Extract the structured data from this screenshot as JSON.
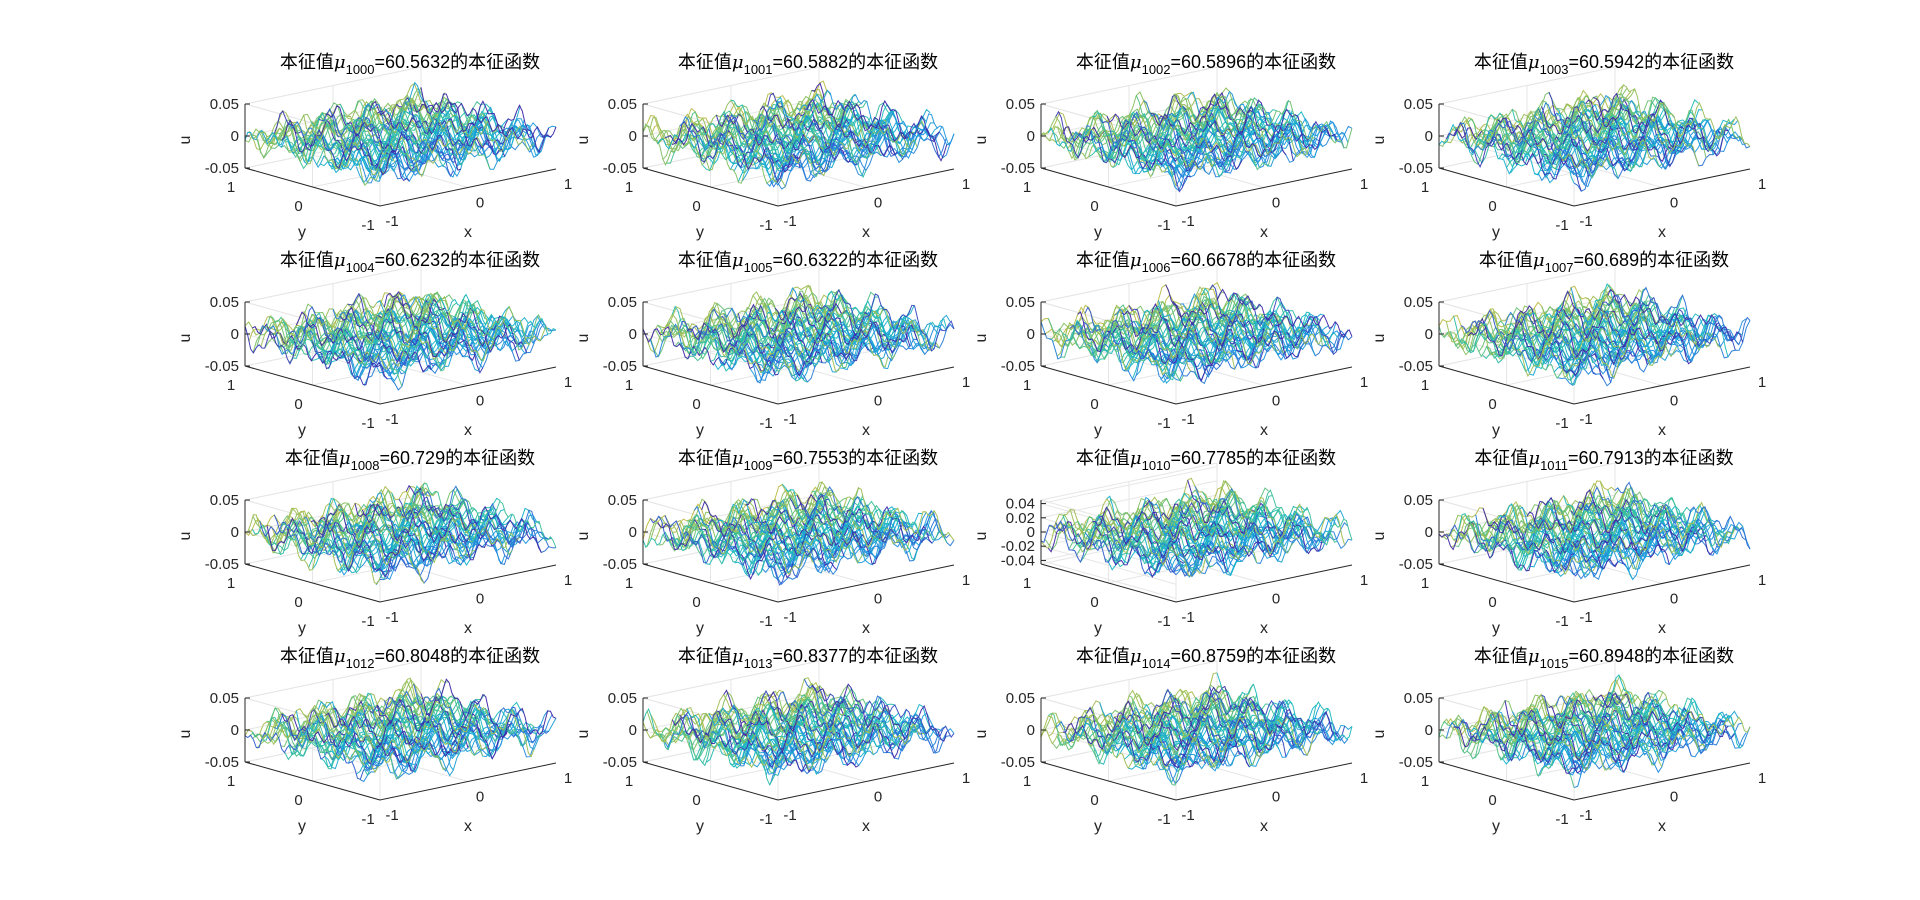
{
  "figure": {
    "background": "#ffffff",
    "axis_color": "#262626",
    "grid_color": "#e6e6e6",
    "colormap": [
      "#3e26a8",
      "#2f5fd0",
      "#1f93df",
      "#14b6c9",
      "#3cc095",
      "#8fbf5a",
      "#d3b93a",
      "#f6d828"
    ]
  },
  "chart_data": [
    {
      "type": "surface3d",
      "title_prefix": "本征值",
      "mu_symbol": "μ",
      "subscript": "1000",
      "value": "=60.5632",
      "title_suffix": "的本征函数",
      "xlabel": "x",
      "ylabel": "y",
      "zlabel": "u",
      "xticks": [
        "-1",
        "0",
        "1"
      ],
      "yticks": [
        "-1",
        "0",
        "1"
      ],
      "zticks": [
        "-0.05",
        "0",
        "0.05"
      ],
      "zlim": [
        -0.05,
        0.05
      ],
      "xlim": [
        -1,
        1
      ],
      "ylim": [
        -1,
        1
      ],
      "eigenvalue": 60.5632
    },
    {
      "type": "surface3d",
      "title_prefix": "本征值",
      "mu_symbol": "μ",
      "subscript": "1001",
      "value": "=60.5882",
      "title_suffix": "的本征函数",
      "xlabel": "x",
      "ylabel": "y",
      "zlabel": "u",
      "xticks": [
        "-1",
        "0",
        "1"
      ],
      "yticks": [
        "-1",
        "0",
        "1"
      ],
      "zticks": [
        "-0.05",
        "0",
        "0.05"
      ],
      "zlim": [
        -0.05,
        0.05
      ],
      "xlim": [
        -1,
        1
      ],
      "ylim": [
        -1,
        1
      ],
      "eigenvalue": 60.5882
    },
    {
      "type": "surface3d",
      "title_prefix": "本征值",
      "mu_symbol": "μ",
      "subscript": "1002",
      "value": "=60.5896",
      "title_suffix": "的本征函数",
      "xlabel": "x",
      "ylabel": "y",
      "zlabel": "u",
      "xticks": [
        "-1",
        "0",
        "1"
      ],
      "yticks": [
        "-1",
        "0",
        "1"
      ],
      "zticks": [
        "-0.05",
        "0",
        "0.05"
      ],
      "zlim": [
        -0.05,
        0.05
      ],
      "xlim": [
        -1,
        1
      ],
      "ylim": [
        -1,
        1
      ],
      "eigenvalue": 60.5896
    },
    {
      "type": "surface3d",
      "title_prefix": "本征值",
      "mu_symbol": "μ",
      "subscript": "1003",
      "value": "=60.5942",
      "title_suffix": "的本征函数",
      "xlabel": "x",
      "ylabel": "y",
      "zlabel": "u",
      "xticks": [
        "-1",
        "0",
        "1"
      ],
      "yticks": [
        "-1",
        "0",
        "1"
      ],
      "zticks": [
        "-0.05",
        "0",
        "0.05"
      ],
      "zlim": [
        -0.05,
        0.05
      ],
      "xlim": [
        -1,
        1
      ],
      "ylim": [
        -1,
        1
      ],
      "eigenvalue": 60.5942
    },
    {
      "type": "surface3d",
      "title_prefix": "本征值",
      "mu_symbol": "μ",
      "subscript": "1004",
      "value": "=60.6232",
      "title_suffix": "的本征函数",
      "xlabel": "x",
      "ylabel": "y",
      "zlabel": "u",
      "xticks": [
        "-1",
        "0",
        "1"
      ],
      "yticks": [
        "-1",
        "0",
        "1"
      ],
      "zticks": [
        "-0.05",
        "0",
        "0.05"
      ],
      "zlim": [
        -0.05,
        0.05
      ],
      "xlim": [
        -1,
        1
      ],
      "ylim": [
        -1,
        1
      ],
      "eigenvalue": 60.6232
    },
    {
      "type": "surface3d",
      "title_prefix": "本征值",
      "mu_symbol": "μ",
      "subscript": "1005",
      "value": "=60.6322",
      "title_suffix": "的本征函数",
      "xlabel": "x",
      "ylabel": "y",
      "zlabel": "u",
      "xticks": [
        "-1",
        "0",
        "1"
      ],
      "yticks": [
        "-1",
        "0",
        "1"
      ],
      "zticks": [
        "-0.05",
        "0",
        "0.05"
      ],
      "zlim": [
        -0.05,
        0.05
      ],
      "xlim": [
        -1,
        1
      ],
      "ylim": [
        -1,
        1
      ],
      "eigenvalue": 60.6322
    },
    {
      "type": "surface3d",
      "title_prefix": "本征值",
      "mu_symbol": "μ",
      "subscript": "1006",
      "value": "=60.6678",
      "title_suffix": "的本征函数",
      "xlabel": "x",
      "ylabel": "y",
      "zlabel": "u",
      "xticks": [
        "-1",
        "0",
        "1"
      ],
      "yticks": [
        "-1",
        "0",
        "1"
      ],
      "zticks": [
        "-0.05",
        "0",
        "0.05"
      ],
      "zlim": [
        -0.05,
        0.05
      ],
      "xlim": [
        -1,
        1
      ],
      "ylim": [
        -1,
        1
      ],
      "eigenvalue": 60.6678
    },
    {
      "type": "surface3d",
      "title_prefix": "本征值",
      "mu_symbol": "μ",
      "subscript": "1007",
      "value": "=60.689",
      "title_suffix": "的本征函数",
      "xlabel": "x",
      "ylabel": "y",
      "zlabel": "u",
      "xticks": [
        "-1",
        "0",
        "1"
      ],
      "yticks": [
        "-1",
        "0",
        "1"
      ],
      "zticks": [
        "-0.05",
        "0",
        "0.05"
      ],
      "zlim": [
        -0.05,
        0.05
      ],
      "xlim": [
        -1,
        1
      ],
      "ylim": [
        -1,
        1
      ],
      "eigenvalue": 60.689
    },
    {
      "type": "surface3d",
      "title_prefix": "本征值",
      "mu_symbol": "μ",
      "subscript": "1008",
      "value": "=60.729",
      "title_suffix": "的本征函数",
      "xlabel": "x",
      "ylabel": "y",
      "zlabel": "u",
      "xticks": [
        "-1",
        "0",
        "1"
      ],
      "yticks": [
        "-1",
        "0",
        "1"
      ],
      "zticks": [
        "-0.05",
        "0",
        "0.05"
      ],
      "zlim": [
        -0.05,
        0.05
      ],
      "xlim": [
        -1,
        1
      ],
      "ylim": [
        -1,
        1
      ],
      "eigenvalue": 60.729
    },
    {
      "type": "surface3d",
      "title_prefix": "本征值",
      "mu_symbol": "μ",
      "subscript": "1009",
      "value": "=60.7553",
      "title_suffix": "的本征函数",
      "xlabel": "x",
      "ylabel": "y",
      "zlabel": "u",
      "xticks": [
        "-1",
        "0",
        "1"
      ],
      "yticks": [
        "-1",
        "0",
        "1"
      ],
      "zticks": [
        "-0.05",
        "0",
        "0.05"
      ],
      "zlim": [
        -0.05,
        0.05
      ],
      "xlim": [
        -1,
        1
      ],
      "ylim": [
        -1,
        1
      ],
      "eigenvalue": 60.7553
    },
    {
      "type": "surface3d",
      "title_prefix": "本征值",
      "mu_symbol": "μ",
      "subscript": "1010",
      "value": "=60.7785",
      "title_suffix": "的本征函数",
      "xlabel": "x",
      "ylabel": "y",
      "zlabel": "u",
      "xticks": [
        "-1",
        "0",
        "1"
      ],
      "yticks": [
        "-1",
        "0",
        "1"
      ],
      "zticks": [
        "-0.04",
        "-0.02",
        "0",
        "0.02",
        "0.04"
      ],
      "zlim": [
        -0.045,
        0.045
      ],
      "xlim": [
        -1,
        1
      ],
      "ylim": [
        -1,
        1
      ],
      "eigenvalue": 60.7785
    },
    {
      "type": "surface3d",
      "title_prefix": "本征值",
      "mu_symbol": "μ",
      "subscript": "1011",
      "value": "=60.7913",
      "title_suffix": "的本征函数",
      "xlabel": "x",
      "ylabel": "y",
      "zlabel": "u",
      "xticks": [
        "-1",
        "0",
        "1"
      ],
      "yticks": [
        "-1",
        "0",
        "1"
      ],
      "zticks": [
        "-0.05",
        "0",
        "0.05"
      ],
      "zlim": [
        -0.05,
        0.05
      ],
      "xlim": [
        -1,
        1
      ],
      "ylim": [
        -1,
        1
      ],
      "eigenvalue": 60.7913
    },
    {
      "type": "surface3d",
      "title_prefix": "本征值",
      "mu_symbol": "μ",
      "subscript": "1012",
      "value": "=60.8048",
      "title_suffix": "的本征函数",
      "xlabel": "x",
      "ylabel": "y",
      "zlabel": "u",
      "xticks": [
        "-1",
        "0",
        "1"
      ],
      "yticks": [
        "-1",
        "0",
        "1"
      ],
      "zticks": [
        "-0.05",
        "0",
        "0.05"
      ],
      "zlim": [
        -0.05,
        0.05
      ],
      "xlim": [
        -1,
        1
      ],
      "ylim": [
        -1,
        1
      ],
      "eigenvalue": 60.8048
    },
    {
      "type": "surface3d",
      "title_prefix": "本征值",
      "mu_symbol": "μ",
      "subscript": "1013",
      "value": "=60.8377",
      "title_suffix": "的本征函数",
      "xlabel": "x",
      "ylabel": "y",
      "zlabel": "u",
      "xticks": [
        "-1",
        "0",
        "1"
      ],
      "yticks": [
        "-1",
        "0",
        "1"
      ],
      "zticks": [
        "-0.05",
        "0",
        "0.05"
      ],
      "zlim": [
        -0.05,
        0.05
      ],
      "xlim": [
        -1,
        1
      ],
      "ylim": [
        -1,
        1
      ],
      "eigenvalue": 60.8377
    },
    {
      "type": "surface3d",
      "title_prefix": "本征值",
      "mu_symbol": "μ",
      "subscript": "1014",
      "value": "=60.8759",
      "title_suffix": "的本征函数",
      "xlabel": "x",
      "ylabel": "y",
      "zlabel": "u",
      "xticks": [
        "-1",
        "0",
        "1"
      ],
      "yticks": [
        "-1",
        "0",
        "1"
      ],
      "zticks": [
        "-0.05",
        "0",
        "0.05"
      ],
      "zlim": [
        -0.05,
        0.05
      ],
      "xlim": [
        -1,
        1
      ],
      "ylim": [
        -1,
        1
      ],
      "eigenvalue": 60.8759
    },
    {
      "type": "surface3d",
      "title_prefix": "本征值",
      "mu_symbol": "μ",
      "subscript": "1015",
      "value": "=60.8948",
      "title_suffix": "的本征函数",
      "xlabel": "x",
      "ylabel": "y",
      "zlabel": "u",
      "xticks": [
        "-1",
        "0",
        "1"
      ],
      "yticks": [
        "-1",
        "0",
        "1"
      ],
      "zticks": [
        "-0.05",
        "0",
        "0.05"
      ],
      "zlim": [
        -0.05,
        0.05
      ],
      "xlim": [
        -1,
        1
      ],
      "ylim": [
        -1,
        1
      ],
      "eigenvalue": 60.8948
    }
  ]
}
